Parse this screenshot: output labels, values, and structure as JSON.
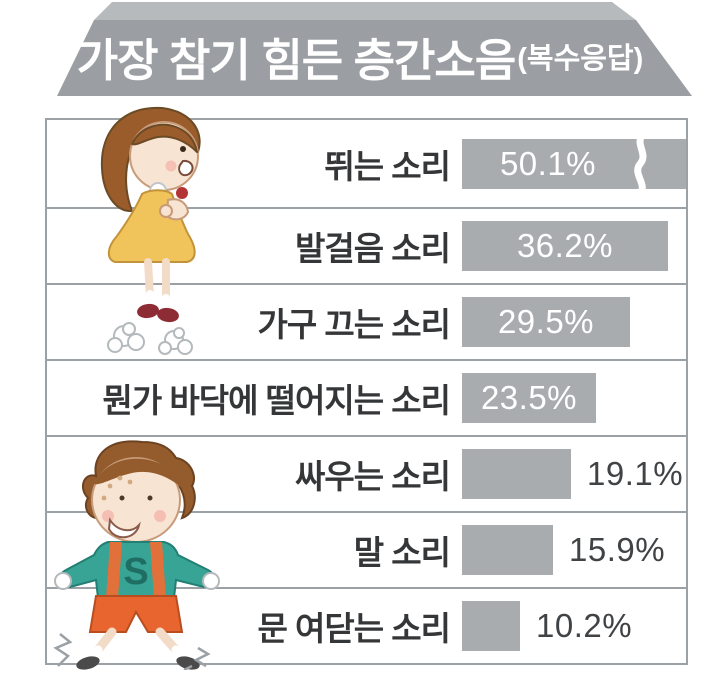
{
  "palette": {
    "roof_top": "#b6babd",
    "roof_face": "#9b9fa3",
    "bar_fill": "#a8acaf",
    "panel_border": "#9ba1a5",
    "divider": "#9ba1a5",
    "label_text": "#343638",
    "value_inside": "#ffffff",
    "value_outside": "#404345",
    "background": "#ffffff"
  },
  "chart_data": {
    "type": "bar",
    "orientation": "horizontal",
    "title": "가장 참기 힘든 층간소음",
    "subtitle": "(복수응답)",
    "categories": [
      "뛰는 소리",
      "발걸음 소리",
      "가구 끄는 소리",
      "뭔가 바닥에 떨어지는 소리",
      "싸우는 소리",
      "말 소리",
      "문 여닫는 소리"
    ],
    "values": [
      50.1,
      36.2,
      29.5,
      23.5,
      19.1,
      15.9,
      10.2
    ],
    "value_labels": [
      "50.1%",
      "36.2%",
      "29.5%",
      "23.5%",
      "19.1%",
      "15.9%",
      "10.2%"
    ],
    "value_label_positions": [
      "inside",
      "inside",
      "inside",
      "inside",
      "outside",
      "outside",
      "outside"
    ],
    "unit": "%",
    "xlim": [
      0,
      39.3
    ],
    "first_bar_truncated": true,
    "legend": "none",
    "grid": "row-dividers"
  },
  "illustrations": {
    "girl": {
      "name": "jumping-girl-illustration"
    },
    "boy": {
      "name": "stomping-boy-illustration"
    }
  }
}
